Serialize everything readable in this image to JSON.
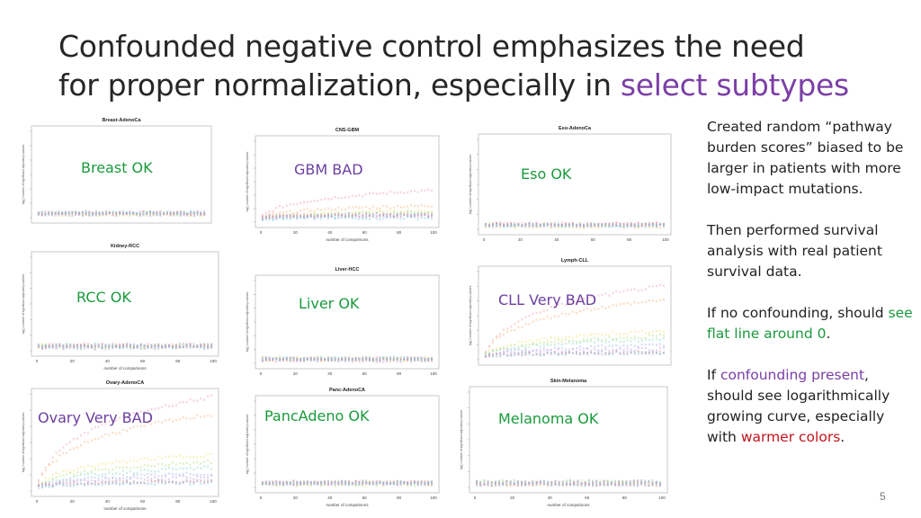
{
  "slide": {
    "title_main": "Confounded negative control emphasizes the need for proper normalization, especially in ",
    "title_highlight": "select subtypes",
    "page_number": "5",
    "colors": {
      "title": "#262626",
      "highlight": "#7b3fa6",
      "ok": "#1a9a3c",
      "bad": "#6b3fa0",
      "warm": "#c0161e"
    }
  },
  "notes": {
    "p1": "Created random “pathway burden scores” biased to be larger in patients with more low-impact mutations.",
    "p2": "Then performed survival analysis with real patient survival data.",
    "p3_pre": "If no confounding, should ",
    "p3_green": "see flat line around 0",
    "p3_post": ".",
    "p4_pre": "If ",
    "p4_purple": "confounding present",
    "p4_mid": ", should see logarithmically growing curve, especially with ",
    "p4_red": "warmer colors",
    "p4_post": "."
  },
  "chart_data": [
    {
      "type": "scatter",
      "title": "Breast-AdenoCa",
      "overlay": "Breast OK",
      "verdict": "ok",
      "xlabel": "",
      "ylabel": "log() number of significant adjusted p-values",
      "xlim": [
        0,
        100
      ],
      "ylim": [
        0,
        60
      ],
      "x_ticks": [],
      "y_ticks": [],
      "trend": "flat",
      "peak": 3
    },
    {
      "type": "scatter",
      "title": "CNS-GBM",
      "overlay": "GBM BAD",
      "verdict": "bad",
      "xlabel": "number of comparisons",
      "ylabel": "log() number of significant adjusted p-values",
      "xlim": [
        0,
        100
      ],
      "ylim": [
        0,
        60
      ],
      "x_ticks": [
        0,
        20,
        40,
        60,
        80,
        100
      ],
      "y_ticks": [],
      "trend": "moderate",
      "peak": 20
    },
    {
      "type": "scatter",
      "title": "Eso-AdenoCa",
      "overlay": "Eso OK",
      "verdict": "ok",
      "xlabel": "",
      "ylabel": "log() number of significant adjusted p-values",
      "xlim": [
        0,
        100
      ],
      "ylim": [
        0,
        60
      ],
      "x_ticks": [
        0,
        20,
        40,
        60,
        80,
        100
      ],
      "y_ticks": [],
      "trend": "flat",
      "peak": 3
    },
    {
      "type": "scatter",
      "title": "Kidney-RCC",
      "overlay": "RCC OK",
      "verdict": "ok",
      "xlabel": "number of comparisons",
      "ylabel": "log() number of significant adjusted p-values",
      "xlim": [
        0,
        100
      ],
      "ylim": [
        0,
        60
      ],
      "x_ticks": [
        0,
        20,
        40,
        60,
        80,
        100
      ],
      "y_ticks": [],
      "trend": "flat",
      "peak": 4
    },
    {
      "type": "scatter",
      "title": "Liver-HCC",
      "overlay": "Liver OK",
      "verdict": "ok",
      "xlabel": "",
      "ylabel": "log() number of significant adjusted p-values",
      "xlim": [
        0,
        100
      ],
      "ylim": [
        0,
        60
      ],
      "x_ticks": [
        0,
        20,
        40,
        60,
        80,
        100
      ],
      "y_ticks": [],
      "trend": "flat",
      "peak": 3
    },
    {
      "type": "scatter",
      "title": "Lymph-CLL",
      "overlay": "CLL Very BAD",
      "verdict": "bad",
      "xlabel": "",
      "ylabel": "log() number of significant adjusted p-values",
      "xlim": [
        0,
        100
      ],
      "ylim": [
        0,
        60
      ],
      "x_ticks": [],
      "y_ticks": [],
      "trend": "strong",
      "peak": 48
    },
    {
      "type": "scatter",
      "title": "Ovary-AdenoCA",
      "overlay": "Ovary Very BAD",
      "verdict": "bad",
      "xlabel": "number of comparisons",
      "ylabel": "log() number of significant adjusted p-values",
      "xlim": [
        0,
        100
      ],
      "ylim": [
        0,
        60
      ],
      "x_ticks": [
        0,
        20,
        40,
        60,
        80,
        100
      ],
      "y_ticks": [],
      "trend": "strong",
      "peak": 56
    },
    {
      "type": "scatter",
      "title": "Panc-AdenoCA",
      "overlay": "PancAdeno OK",
      "verdict": "ok",
      "xlabel": "number of comparisons",
      "ylabel": "log() number of significant adjusted p-values",
      "xlim": [
        0,
        100
      ],
      "ylim": [
        0,
        60
      ],
      "x_ticks": [
        0,
        20,
        40,
        60,
        80,
        100
      ],
      "y_ticks": [],
      "trend": "flat",
      "peak": 3
    },
    {
      "type": "scatter",
      "title": "Skin-Melanoma",
      "overlay": "Melanoma OK",
      "verdict": "ok",
      "xlabel": "number of comparisons",
      "ylabel": "log() number of significant adjusted p-values",
      "xlim": [
        0,
        100
      ],
      "ylim": [
        0,
        60
      ],
      "x_ticks": [
        0,
        20,
        40,
        60,
        80,
        100
      ],
      "y_ticks": [],
      "trend": "flat",
      "peak": 3
    }
  ]
}
